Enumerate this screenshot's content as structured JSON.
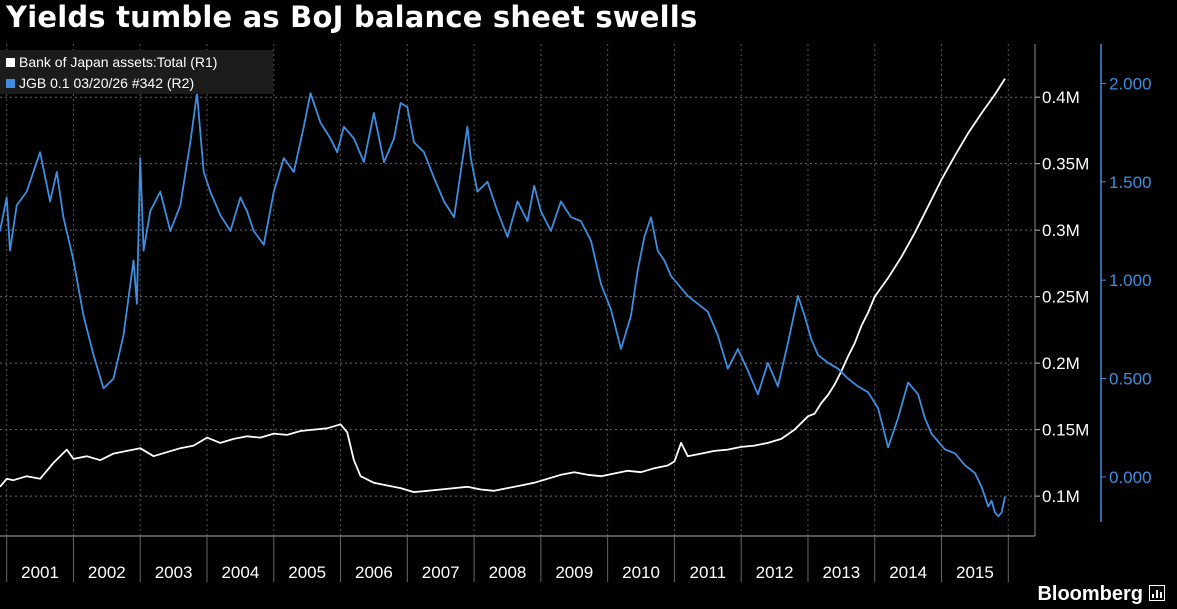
{
  "title": "Yields tumble as BoJ balance sheet swells",
  "brand": "Bloomberg",
  "legend": {
    "items": [
      {
        "label": "Bank of Japan assets:Total  (R1)",
        "color": "#ffffff"
      },
      {
        "label": "JGB 0.1 03/20/26 #342  (R2)",
        "color": "#3d8ee0"
      }
    ]
  },
  "chart_data": {
    "type": "line",
    "title": "Yields tumble as BoJ balance sheet swells",
    "xlabel": "",
    "x_ticks": [
      "2001",
      "2002",
      "2003",
      "2004",
      "2005",
      "2006",
      "2007",
      "2008",
      "2009",
      "2010",
      "2011",
      "2012",
      "2013",
      "2014",
      "2015"
    ],
    "xlim": [
      2000.9,
      2016.4
    ],
    "axes": {
      "R1": {
        "ticks": [
          "0.1M",
          "0.15M",
          "0.2M",
          "0.25M",
          "0.3M",
          "0.35M",
          "0.4M"
        ],
        "tick_values": [
          0.1,
          0.15,
          0.2,
          0.25,
          0.3,
          0.35,
          0.4
        ],
        "ylim": [
          0.07,
          0.44
        ],
        "color": "#ffffff"
      },
      "R2": {
        "ticks": [
          "0.000",
          "0.500",
          "1.000",
          "1.500",
          "2.000"
        ],
        "tick_values": [
          0,
          0.5,
          1,
          1.5,
          2
        ],
        "ylim": [
          -0.3,
          2.2
        ],
        "color": "#3d8ee0"
      }
    },
    "grid": true,
    "legend_position": "top-left",
    "series": [
      {
        "name": "Bank of Japan assets:Total  (R1)",
        "axis": "R1",
        "color": "#ffffff",
        "x": [
          2000.9,
          2001.0,
          2001.1,
          2001.3,
          2001.5,
          2001.7,
          2001.9,
          2002.0,
          2002.2,
          2002.4,
          2002.6,
          2002.8,
          2003.0,
          2003.2,
          2003.4,
          2003.6,
          2003.8,
          2004.0,
          2004.2,
          2004.4,
          2004.6,
          2004.8,
          2005.0,
          2005.2,
          2005.4,
          2005.6,
          2005.8,
          2006.0,
          2006.1,
          2006.2,
          2006.3,
          2006.5,
          2006.7,
          2006.9,
          2007.1,
          2007.3,
          2007.5,
          2007.7,
          2007.9,
          2008.1,
          2008.3,
          2008.5,
          2008.7,
          2008.9,
          2009.1,
          2009.3,
          2009.5,
          2009.7,
          2009.9,
          2010.1,
          2010.3,
          2010.5,
          2010.7,
          2010.9,
          2011.0,
          2011.1,
          2011.2,
          2011.4,
          2011.6,
          2011.8,
          2012.0,
          2012.2,
          2012.4,
          2012.6,
          2012.8,
          2013.0,
          2013.1,
          2013.2,
          2013.3,
          2013.4,
          2013.5,
          2013.6,
          2013.7,
          2013.8,
          2013.9,
          2014.0,
          2014.2,
          2014.4,
          2014.6,
          2014.8,
          2015.0,
          2015.2,
          2015.4,
          2015.6,
          2015.8,
          2015.95
        ],
        "values": [
          0.107,
          0.113,
          0.112,
          0.115,
          0.113,
          0.125,
          0.135,
          0.128,
          0.13,
          0.127,
          0.132,
          0.134,
          0.136,
          0.13,
          0.133,
          0.136,
          0.138,
          0.144,
          0.14,
          0.143,
          0.145,
          0.144,
          0.147,
          0.146,
          0.149,
          0.15,
          0.151,
          0.154,
          0.148,
          0.127,
          0.115,
          0.11,
          0.108,
          0.106,
          0.103,
          0.104,
          0.105,
          0.106,
          0.107,
          0.105,
          0.104,
          0.106,
          0.108,
          0.11,
          0.113,
          0.116,
          0.118,
          0.116,
          0.115,
          0.117,
          0.119,
          0.118,
          0.121,
          0.123,
          0.126,
          0.14,
          0.13,
          0.132,
          0.134,
          0.135,
          0.137,
          0.138,
          0.14,
          0.143,
          0.15,
          0.16,
          0.162,
          0.17,
          0.176,
          0.184,
          0.194,
          0.205,
          0.215,
          0.228,
          0.238,
          0.25,
          0.264,
          0.28,
          0.298,
          0.318,
          0.338,
          0.356,
          0.373,
          0.388,
          0.402,
          0.414
        ]
      },
      {
        "name": "JGB 0.1 03/20/26 #342  (R2)",
        "axis": "R2",
        "color": "#3d8ee0",
        "x": [
          2000.9,
          2001.0,
          2001.05,
          2001.15,
          2001.3,
          2001.5,
          2001.65,
          2001.75,
          2001.85,
          2002.0,
          2002.15,
          2002.3,
          2002.45,
          2002.6,
          2002.75,
          2002.9,
          2002.95,
          2003.0,
          2003.05,
          2003.15,
          2003.3,
          2003.45,
          2003.6,
          2003.75,
          2003.85,
          2003.95,
          2004.05,
          2004.2,
          2004.35,
          2004.5,
          2004.6,
          2004.7,
          2004.85,
          2005.0,
          2005.15,
          2005.3,
          2005.45,
          2005.55,
          2005.7,
          2005.85,
          2005.95,
          2006.05,
          2006.2,
          2006.35,
          2006.5,
          2006.65,
          2006.8,
          2006.9,
          2007.0,
          2007.1,
          2007.25,
          2007.4,
          2007.55,
          2007.7,
          2007.8,
          2007.9,
          2007.95,
          2008.05,
          2008.2,
          2008.35,
          2008.5,
          2008.65,
          2008.8,
          2008.9,
          2009.0,
          2009.15,
          2009.3,
          2009.45,
          2009.6,
          2009.75,
          2009.9,
          2010.05,
          2010.2,
          2010.35,
          2010.45,
          2010.55,
          2010.65,
          2010.75,
          2010.85,
          2010.95,
          2011.05,
          2011.2,
          2011.35,
          2011.5,
          2011.65,
          2011.8,
          2011.95,
          2012.1,
          2012.25,
          2012.4,
          2012.55,
          2012.7,
          2012.85,
          2012.95,
          2013.05,
          2013.15,
          2013.3,
          2013.45,
          2013.6,
          2013.75,
          2013.9,
          2014.05,
          2014.2,
          2014.35,
          2014.5,
          2014.65,
          2014.75,
          2014.85,
          2014.95,
          2015.05,
          2015.2,
          2015.35,
          2015.5,
          2015.6,
          2015.65,
          2015.7,
          2015.75,
          2015.8,
          2015.85,
          2015.9,
          2015.95
        ],
        "values": [
          1.25,
          1.42,
          1.15,
          1.38,
          1.45,
          1.65,
          1.4,
          1.55,
          1.32,
          1.1,
          0.82,
          0.62,
          0.45,
          0.5,
          0.72,
          1.1,
          0.88,
          1.62,
          1.15,
          1.35,
          1.45,
          1.25,
          1.38,
          1.7,
          1.95,
          1.55,
          1.45,
          1.33,
          1.25,
          1.42,
          1.35,
          1.25,
          1.18,
          1.45,
          1.62,
          1.55,
          1.78,
          1.95,
          1.8,
          1.72,
          1.65,
          1.78,
          1.72,
          1.6,
          1.85,
          1.6,
          1.72,
          1.9,
          1.88,
          1.7,
          1.65,
          1.52,
          1.4,
          1.32,
          1.55,
          1.78,
          1.62,
          1.45,
          1.5,
          1.35,
          1.22,
          1.4,
          1.3,
          1.48,
          1.35,
          1.25,
          1.4,
          1.32,
          1.3,
          1.2,
          0.98,
          0.85,
          0.65,
          0.82,
          1.05,
          1.22,
          1.32,
          1.15,
          1.1,
          1.02,
          0.98,
          0.92,
          0.88,
          0.84,
          0.72,
          0.55,
          0.65,
          0.54,
          0.42,
          0.58,
          0.46,
          0.68,
          0.92,
          0.82,
          0.7,
          0.62,
          0.58,
          0.55,
          0.5,
          0.46,
          0.43,
          0.35,
          0.15,
          0.3,
          0.48,
          0.42,
          0.3,
          0.22,
          0.18,
          0.14,
          0.12,
          0.06,
          0.02,
          -0.05,
          -0.1,
          -0.15,
          -0.12,
          -0.18,
          -0.2,
          -0.18,
          -0.1
        ]
      }
    ]
  }
}
